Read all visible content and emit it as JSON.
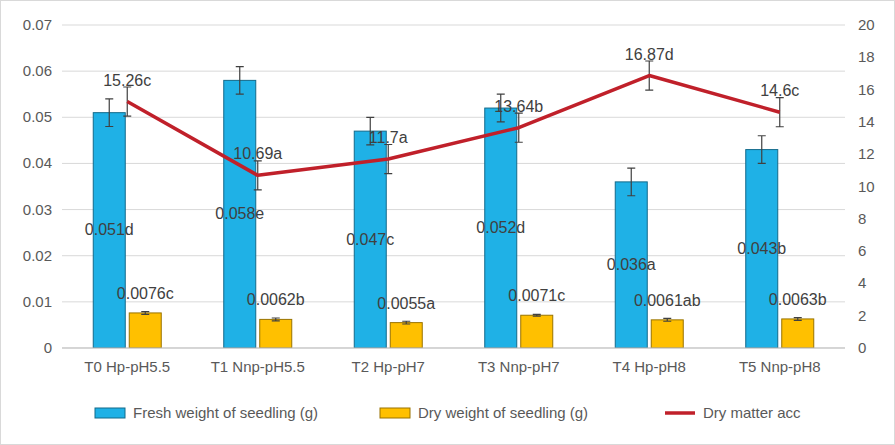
{
  "chart_data": {
    "type": "bar",
    "categories": [
      "T0 Hp-pH5.5",
      "T1 Nnp-pH5.5",
      "T2 Hp-pH7",
      "T3 Nnp-pH7",
      "T4 Hp-pH8",
      "T5 Nnp-pH8"
    ],
    "series": [
      {
        "name": "Fresh weight of seedling (g)",
        "type": "bar",
        "color": "#1fb1e6",
        "values": [
          0.051,
          0.058,
          0.047,
          0.052,
          0.036,
          0.043
        ],
        "value_labels": [
          "0.051d",
          "0.058e",
          "0.047c",
          "0.052d",
          "0.036a",
          "0.043b"
        ],
        "errors": [
          0.003,
          0.003,
          0.003,
          0.003,
          0.003,
          0.003
        ]
      },
      {
        "name": "Dry weight of seedling (g)",
        "type": "bar",
        "color": "#ffc000",
        "values": [
          0.0076,
          0.0062,
          0.0055,
          0.0071,
          0.0061,
          0.0063
        ],
        "value_labels": [
          "0.0076c",
          "0.0062b",
          "0.0055a",
          "0.0071c",
          "0.0061ab",
          "0.0063b"
        ],
        "errors": [
          0.0003,
          0.0003,
          0.0003,
          0.0002,
          0.0003,
          0.0003
        ]
      },
      {
        "name": "Dry matter acc",
        "type": "line",
        "axis": "y2",
        "color": "#c0202a",
        "values": [
          15.26,
          10.69,
          11.7,
          13.64,
          16.87,
          14.6
        ],
        "value_labels": [
          "15.26c",
          "10.69a",
          "11.7a",
          "13.64b",
          "16.87d",
          "14.6c"
        ],
        "errors": [
          0.9,
          0.9,
          0.9,
          0.9,
          0.9,
          0.9
        ]
      }
    ],
    "ylim": [
      0,
      0.07
    ],
    "yticks": [
      0,
      0.01,
      0.02,
      0.03,
      0.04,
      0.05,
      0.06,
      0.07
    ],
    "y2lim": [
      0,
      20
    ],
    "y2ticks": [
      0,
      2,
      4,
      6,
      8,
      10,
      12,
      14,
      16,
      18,
      20
    ],
    "grid": true,
    "legend": "bottom",
    "data_labels": true
  }
}
